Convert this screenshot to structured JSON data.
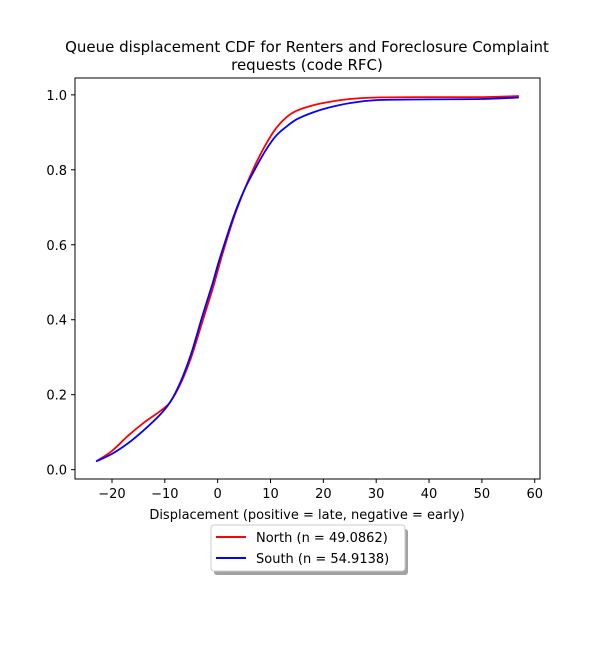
{
  "chart_data": {
    "type": "line",
    "title_lines": [
      "Queue displacement CDF for Renters and Foreclosure Complaint",
      "requests (code RFC)"
    ],
    "xlabel": "Displacement (positive = late, negative = early)",
    "ylabel": "",
    "xlim": [
      -27,
      61
    ],
    "ylim": [
      -0.025,
      1.045
    ],
    "xticks": [
      -20,
      -10,
      0,
      10,
      20,
      30,
      40,
      50,
      60
    ],
    "xtick_labels": [
      "−20",
      "−10",
      "0",
      "10",
      "20",
      "30",
      "40",
      "50",
      "60"
    ],
    "yticks": [
      0.0,
      0.2,
      0.4,
      0.6,
      0.8,
      1.0
    ],
    "ytick_labels": [
      "0.0",
      "0.2",
      "0.4",
      "0.6",
      "0.8",
      "1.0"
    ],
    "grid": false,
    "legend_position": "below",
    "series": [
      {
        "name": "North (n = 49.0862)",
        "color": "#ff0000",
        "points": [
          [
            -23,
            0.022
          ],
          [
            -20,
            0.05
          ],
          [
            -17,
            0.09
          ],
          [
            -14,
            0.125
          ],
          [
            -11,
            0.155
          ],
          [
            -9,
            0.18
          ],
          [
            -7,
            0.23
          ],
          [
            -5,
            0.3
          ],
          [
            -3,
            0.39
          ],
          [
            -1,
            0.48
          ],
          [
            0,
            0.53
          ],
          [
            1,
            0.58
          ],
          [
            3,
            0.67
          ],
          [
            5,
            0.745
          ],
          [
            7,
            0.81
          ],
          [
            9,
            0.865
          ],
          [
            11,
            0.91
          ],
          [
            13,
            0.94
          ],
          [
            15,
            0.958
          ],
          [
            18,
            0.972
          ],
          [
            21,
            0.981
          ],
          [
            25,
            0.989
          ],
          [
            30,
            0.993
          ],
          [
            40,
            0.994
          ],
          [
            50,
            0.994
          ],
          [
            57,
            0.997
          ]
        ]
      },
      {
        "name": "South (n = 54.9138)",
        "color": "#0000ff",
        "points": [
          [
            -23,
            0.022
          ],
          [
            -20,
            0.042
          ],
          [
            -17,
            0.07
          ],
          [
            -14,
            0.105
          ],
          [
            -11,
            0.145
          ],
          [
            -9,
            0.18
          ],
          [
            -7,
            0.235
          ],
          [
            -5,
            0.31
          ],
          [
            -3,
            0.405
          ],
          [
            -1,
            0.495
          ],
          [
            0,
            0.545
          ],
          [
            1,
            0.59
          ],
          [
            3,
            0.675
          ],
          [
            5,
            0.745
          ],
          [
            7,
            0.8
          ],
          [
            9,
            0.85
          ],
          [
            11,
            0.89
          ],
          [
            13,
            0.915
          ],
          [
            15,
            0.935
          ],
          [
            18,
            0.953
          ],
          [
            21,
            0.966
          ],
          [
            25,
            0.978
          ],
          [
            30,
            0.986
          ],
          [
            40,
            0.988
          ],
          [
            50,
            0.989
          ],
          [
            57,
            0.993
          ]
        ]
      }
    ]
  }
}
